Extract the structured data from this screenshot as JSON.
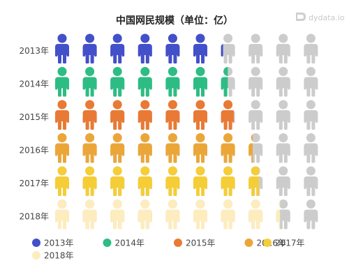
{
  "chart_data": {
    "type": "pictorial-bar",
    "title": "中国网民规模（单位：亿）",
    "unit": "亿",
    "icon": "person-icon",
    "icons_per_row": 10,
    "categories": [
      "2013年",
      "2014年",
      "2015年",
      "2016年",
      "2017年",
      "2018年"
    ],
    "values": [
      6.18,
      6.49,
      6.88,
      7.31,
      7.72,
      8.29
    ],
    "colors": [
      "#4350c9",
      "#2dbd84",
      "#e87a35",
      "#eba63a",
      "#f5cd36",
      "#fdecbe"
    ],
    "background_color": "#cccccc",
    "legend": {
      "placement": "bottom-left",
      "items": [
        "2013年",
        "2014年",
        "2015年",
        "2016年",
        "2017年",
        "2018年"
      ]
    }
  },
  "watermark": {
    "brand": "dydata.io",
    "icon": "dydata-logo-icon"
  }
}
